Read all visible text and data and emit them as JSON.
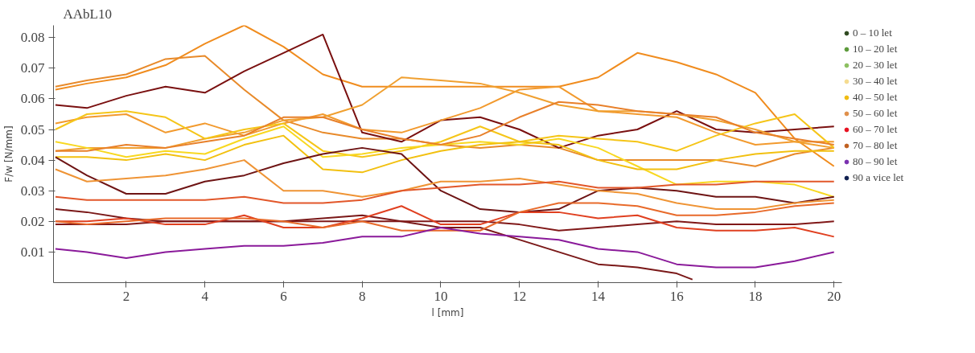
{
  "chart_data": {
    "type": "line",
    "title": "AAbL10",
    "xlabel": "l [mm]",
    "ylabel": "F/w [N/mm]",
    "x": [
      0.2,
      1,
      2,
      3,
      4,
      5,
      6,
      7,
      8,
      9,
      10,
      11,
      12,
      13,
      14,
      15,
      16,
      17,
      18,
      19,
      20
    ],
    "xlim": [
      0.15,
      20.2
    ],
    "xticks": [
      2,
      4,
      6,
      8,
      10,
      12,
      14,
      16,
      18,
      20
    ],
    "ylim": [
      0,
      0.084
    ],
    "yticks": [
      0.01,
      0.02,
      0.03,
      0.04,
      0.05,
      0.06,
      0.07,
      0.08
    ],
    "grid": false,
    "legend": "top right",
    "line_style": "solid",
    "marker": "none",
    "series": [
      {
        "color": "#f08c1e",
        "values": [
          0.063,
          0.065,
          0.067,
          0.071,
          0.078,
          0.084,
          0.077,
          0.068,
          0.064,
          0.064,
          0.064,
          0.064,
          0.064,
          0.064,
          0.067,
          0.075,
          0.072,
          0.068,
          0.062,
          0.047,
          0.038
        ]
      },
      {
        "color": "#e88a2a",
        "values": [
          0.064,
          0.066,
          0.068,
          0.073,
          0.074,
          0.063,
          0.053,
          0.049,
          0.047,
          0.047,
          0.045,
          0.044,
          0.045,
          0.044,
          0.04,
          0.04,
          0.04,
          0.04,
          0.038,
          0.042,
          0.044
        ]
      },
      {
        "color": "#7a1010",
        "values": [
          0.058,
          0.057,
          0.061,
          0.064,
          0.062,
          0.069,
          0.075,
          0.081,
          0.049,
          0.046,
          0.053,
          0.054,
          0.05,
          0.044,
          0.048,
          0.05,
          0.056,
          0.05,
          0.049,
          0.05,
          0.051
        ]
      },
      {
        "color": "#f29a2e",
        "values": [
          0.052,
          0.054,
          0.055,
          0.049,
          0.052,
          0.048,
          0.052,
          0.055,
          0.05,
          0.049,
          0.053,
          0.057,
          0.063,
          0.064,
          0.056,
          0.055,
          0.054,
          0.049,
          0.045,
          0.046,
          0.046
        ]
      },
      {
        "color": "#f0a030",
        "values": [
          0.043,
          0.044,
          0.044,
          0.044,
          0.047,
          0.049,
          0.053,
          0.054,
          0.058,
          0.067,
          0.066,
          0.065,
          0.062,
          0.058,
          0.056,
          0.056,
          0.055,
          0.053,
          0.05,
          0.046,
          0.044
        ]
      },
      {
        "color": "#f5c518",
        "values": [
          0.05,
          0.055,
          0.056,
          0.054,
          0.047,
          0.05,
          0.052,
          0.043,
          0.041,
          0.043,
          0.046,
          0.051,
          0.046,
          0.048,
          0.047,
          0.046,
          0.043,
          0.048,
          0.052,
          0.055,
          0.044
        ]
      },
      {
        "color": "#f8d820",
        "values": [
          0.046,
          0.044,
          0.041,
          0.043,
          0.042,
          0.047,
          0.051,
          0.041,
          0.042,
          0.044,
          0.045,
          0.046,
          0.045,
          0.047,
          0.044,
          0.038,
          0.032,
          0.033,
          0.033,
          0.032,
          0.028
        ]
      },
      {
        "color": "#f2c010",
        "values": [
          0.041,
          0.041,
          0.04,
          0.042,
          0.04,
          0.045,
          0.048,
          0.037,
          0.036,
          0.04,
          0.043,
          0.045,
          0.046,
          0.045,
          0.04,
          0.037,
          0.037,
          0.04,
          0.042,
          0.043,
          0.043
        ]
      },
      {
        "color": "#e8802a",
        "values": [
          0.043,
          0.043,
          0.045,
          0.044,
          0.046,
          0.048,
          0.054,
          0.054,
          0.05,
          0.047,
          0.045,
          0.048,
          0.054,
          0.059,
          0.058,
          0.056,
          0.055,
          0.054,
          0.049,
          0.047,
          0.045
        ]
      },
      {
        "color": "#6e1414",
        "values": [
          0.041,
          0.035,
          0.029,
          0.029,
          0.033,
          0.035,
          0.039,
          0.042,
          0.044,
          0.042,
          0.03,
          0.024,
          0.023,
          0.024,
          0.03,
          0.031,
          0.03,
          0.028,
          0.028,
          0.026,
          0.028
        ]
      },
      {
        "color": "#ef9435",
        "values": [
          0.037,
          0.033,
          0.034,
          0.035,
          0.037,
          0.04,
          0.03,
          0.03,
          0.028,
          0.03,
          0.033,
          0.033,
          0.034,
          0.032,
          0.03,
          0.029,
          0.026,
          0.024,
          0.024,
          0.026,
          0.027
        ]
      },
      {
        "color": "#e2572a",
        "values": [
          0.028,
          0.027,
          0.027,
          0.027,
          0.027,
          0.028,
          0.026,
          0.026,
          0.027,
          0.03,
          0.031,
          0.032,
          0.032,
          0.033,
          0.031,
          0.031,
          0.032,
          0.032,
          0.033,
          0.033,
          0.033
        ]
      },
      {
        "color": "#7a1818",
        "x": [
          0.2,
          1,
          2,
          3,
          4,
          5,
          6,
          7,
          8,
          9,
          10,
          11,
          12,
          13,
          14,
          15,
          16,
          16.4
        ],
        "values": [
          0.024,
          0.023,
          0.021,
          0.02,
          0.02,
          0.02,
          0.02,
          0.021,
          0.022,
          0.02,
          0.018,
          0.018,
          0.014,
          0.01,
          0.006,
          0.005,
          0.003,
          0.001
        ]
      },
      {
        "color": "#801818",
        "values": [
          0.019,
          0.019,
          0.019,
          0.02,
          0.02,
          0.02,
          0.02,
          0.02,
          0.02,
          0.02,
          0.02,
          0.02,
          0.019,
          0.017,
          0.018,
          0.019,
          0.02,
          0.019,
          0.019,
          0.019,
          0.02
        ]
      },
      {
        "color": "#e04020",
        "values": [
          0.02,
          0.02,
          0.021,
          0.019,
          0.019,
          0.022,
          0.018,
          0.018,
          0.021,
          0.025,
          0.019,
          0.019,
          0.023,
          0.023,
          0.021,
          0.022,
          0.018,
          0.017,
          0.017,
          0.018,
          0.015
        ]
      },
      {
        "color": "#e86a2a",
        "values": [
          0.02,
          0.019,
          0.02,
          0.021,
          0.021,
          0.021,
          0.02,
          0.018,
          0.02,
          0.017,
          0.017,
          0.017,
          0.023,
          0.026,
          0.026,
          0.025,
          0.022,
          0.022,
          0.023,
          0.025,
          0.026
        ]
      },
      {
        "color": "#8a1a9a",
        "values": [
          0.011,
          0.01,
          0.008,
          0.01,
          0.011,
          0.012,
          0.012,
          0.013,
          0.015,
          0.015,
          0.018,
          0.016,
          0.015,
          0.014,
          0.011,
          0.01,
          0.006,
          0.005,
          0.005,
          0.007,
          0.01
        ]
      },
      {
        "type": "scatter",
        "name": "0 – 10 let",
        "color": "#2f4a20",
        "values": [
          null,
          null,
          null,
          null,
          null,
          null,
          null,
          null,
          null,
          null,
          null,
          null,
          null,
          null,
          null,
          null,
          null,
          null,
          null,
          null,
          null
        ]
      },
      {
        "type": "scatter",
        "name": "10 – 20 let",
        "color": "#5c9a3a",
        "values": [
          null,
          null,
          null,
          null,
          null,
          null,
          null,
          null,
          null,
          null,
          null,
          null,
          null,
          null,
          null,
          null,
          null,
          null,
          null,
          null,
          null
        ]
      },
      {
        "type": "scatter",
        "name": "20 – 30 let",
        "color": "#8cc060",
        "values": [
          null,
          null,
          null,
          null,
          null,
          null,
          null,
          null,
          null,
          null,
          null,
          null,
          null,
          null,
          null,
          null,
          null,
          null,
          null,
          null,
          null
        ]
      },
      {
        "type": "scatter",
        "name": "30 – 40 let",
        "color": "#f5dc90",
        "values": [
          null,
          null,
          null,
          null,
          null,
          null,
          null,
          null,
          null,
          null,
          null,
          null,
          null,
          null,
          null,
          null,
          null,
          null,
          null,
          null,
          null
        ]
      },
      {
        "type": "scatter",
        "name": "40 – 50 let",
        "color": "#f0bc10",
        "values": [
          null,
          null,
          null,
          null,
          null,
          null,
          null,
          null,
          null,
          null,
          null,
          null,
          null,
          null,
          null,
          null,
          null,
          null,
          null,
          null,
          null
        ]
      },
      {
        "type": "scatter",
        "name": "50 – 60 let",
        "color": "#e0904a",
        "values": [
          null,
          null,
          null,
          null,
          null,
          null,
          null,
          null,
          null,
          null,
          null,
          null,
          null,
          null,
          null,
          null,
          null,
          null,
          null,
          null,
          null
        ]
      },
      {
        "type": "scatter",
        "name": "60 – 70 let",
        "color": "#e81020",
        "values": [
          null,
          null,
          null,
          null,
          null,
          null,
          null,
          null,
          null,
          null,
          null,
          null,
          null,
          null,
          null,
          null,
          null,
          null,
          null,
          null,
          null
        ]
      },
      {
        "type": "scatter",
        "name": "70 – 80 let",
        "color": "#c06020",
        "values": [
          null,
          null,
          null,
          null,
          null,
          null,
          null,
          null,
          null,
          null,
          null,
          null,
          null,
          null,
          null,
          null,
          null,
          null,
          null,
          null,
          null
        ]
      },
      {
        "type": "scatter",
        "name": "80 – 90 let",
        "color": "#7a30b0",
        "values": [
          null,
          null,
          null,
          null,
          null,
          null,
          null,
          null,
          null,
          null,
          null,
          null,
          null,
          null,
          null,
          null,
          null,
          null,
          null,
          null,
          null
        ]
      },
      {
        "type": "scatter",
        "name": "90 a vice let",
        "color": "#102050",
        "values": [
          null,
          null,
          null,
          null,
          null,
          null,
          null,
          null,
          null,
          null,
          null,
          null,
          null,
          null,
          null,
          null,
          null,
          null,
          null,
          null,
          null
        ]
      }
    ]
  }
}
